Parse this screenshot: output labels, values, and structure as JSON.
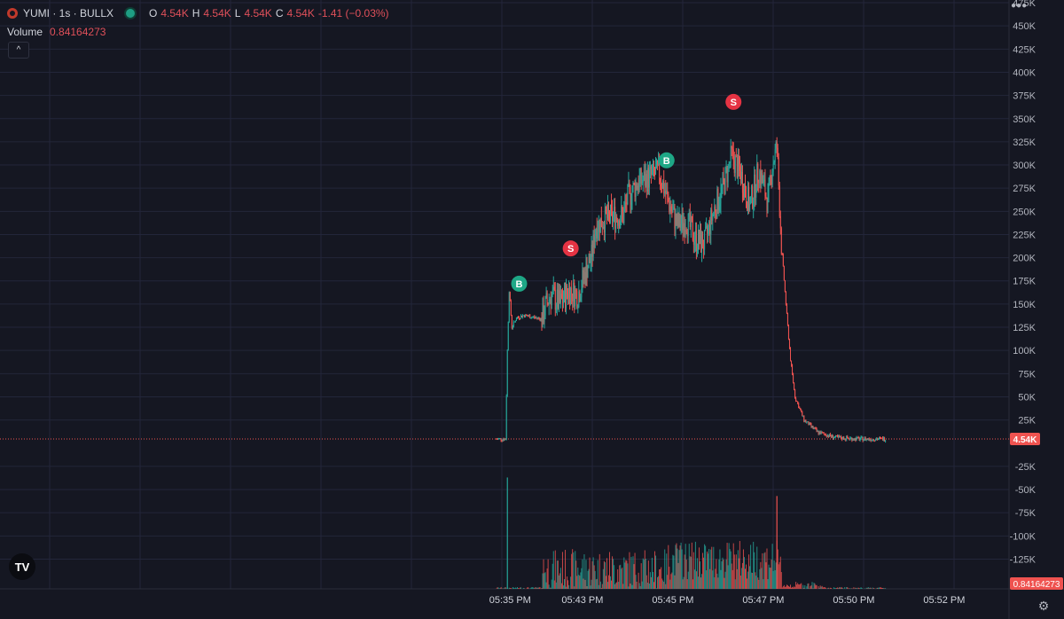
{
  "header": {
    "symbol": "YUMI · 1s · BULLX",
    "o_label": "O",
    "o_value": "4.54K",
    "h_label": "H",
    "h_value": "4.54K",
    "l_label": "L",
    "l_value": "4.54K",
    "c_label": "C",
    "c_value": "4.54K",
    "change": "-1.41 (−0.03%)"
  },
  "volume": {
    "label": "Volume",
    "value": "0.84164273"
  },
  "colors": {
    "bg": "#151722",
    "up": "#26a69a",
    "down": "#ef5350",
    "grid": "#23263a",
    "marker_buy": "#1ea786",
    "marker_sell": "#e53343"
  },
  "chart_data": {
    "type": "candlestick",
    "price_axis": {
      "ticks": [
        "475K",
        "450K",
        "425K",
        "400K",
        "375K",
        "350K",
        "325K",
        "300K",
        "275K",
        "250K",
        "225K",
        "200K",
        "175K",
        "150K",
        "125K",
        "100K",
        "75K",
        "50K",
        "25K",
        "-25K",
        "-50K",
        "-75K",
        "-100K",
        "-125K"
      ],
      "tick_values": [
        475000,
        450000,
        425000,
        400000,
        375000,
        350000,
        325000,
        300000,
        275000,
        250000,
        225000,
        200000,
        175000,
        150000,
        125000,
        100000,
        75000,
        50000,
        25000,
        -25000,
        -50000,
        -75000,
        -100000,
        -125000
      ],
      "last_price_label": "4.54K",
      "last_price": 4540
    },
    "time_axis": {
      "ticks": [
        "05:35 PM",
        "05:43 PM",
        "05:45 PM",
        "05:47 PM",
        "05:50 PM",
        "05:52 PM"
      ],
      "tick_t": [
        0.15,
        0.95,
        1.95,
        2.95,
        3.95,
        4.95
      ]
    },
    "volume_label": "0.84164273",
    "price_path": [
      [
        0.0,
        4540
      ],
      [
        0.1,
        4540
      ],
      [
        0.12,
        100000
      ],
      [
        0.14,
        165000
      ],
      [
        0.17,
        125000
      ],
      [
        0.22,
        135000
      ],
      [
        0.3,
        138000
      ],
      [
        0.4,
        136000
      ],
      [
        0.5,
        134000
      ],
      [
        0.55,
        150000
      ],
      [
        0.6,
        160000
      ],
      [
        0.7,
        150000
      ],
      [
        0.8,
        165000
      ],
      [
        0.9,
        160000
      ],
      [
        0.95,
        175000
      ],
      [
        1.0,
        190000
      ],
      [
        1.05,
        200000
      ],
      [
        1.1,
        235000
      ],
      [
        1.2,
        242000
      ],
      [
        1.3,
        245000
      ],
      [
        1.4,
        245000
      ],
      [
        1.45,
        265000
      ],
      [
        1.55,
        280000
      ],
      [
        1.65,
        285000
      ],
      [
        1.75,
        290000
      ],
      [
        1.8,
        292000
      ],
      [
        1.9,
        260000
      ],
      [
        2.0,
        235000
      ],
      [
        2.1,
        240000
      ],
      [
        2.2,
        220000
      ],
      [
        2.3,
        215000
      ],
      [
        2.4,
        250000
      ],
      [
        2.5,
        275000
      ],
      [
        2.6,
        310000
      ],
      [
        2.7,
        290000
      ],
      [
        2.8,
        255000
      ],
      [
        2.9,
        295000
      ],
      [
        3.0,
        260000
      ],
      [
        3.05,
        300000
      ],
      [
        3.1,
        320000
      ],
      [
        3.15,
        215000
      ],
      [
        3.2,
        150000
      ],
      [
        3.25,
        90000
      ],
      [
        3.3,
        50000
      ],
      [
        3.4,
        25000
      ],
      [
        3.55,
        12000
      ],
      [
        3.75,
        6000
      ],
      [
        4.0,
        4540
      ],
      [
        4.3,
        4540
      ]
    ],
    "volume_spikes": [
      {
        "t": 0.12,
        "v": -190000
      },
      {
        "t": 3.1,
        "v": -210000
      }
    ],
    "markers": [
      {
        "type": "B",
        "t": 0.25,
        "price": 172000
      },
      {
        "type": "S",
        "t": 0.82,
        "price": 210000
      },
      {
        "type": "B",
        "t": 1.88,
        "price": 305000
      },
      {
        "type": "S",
        "t": 2.62,
        "price": 368000
      }
    ]
  }
}
